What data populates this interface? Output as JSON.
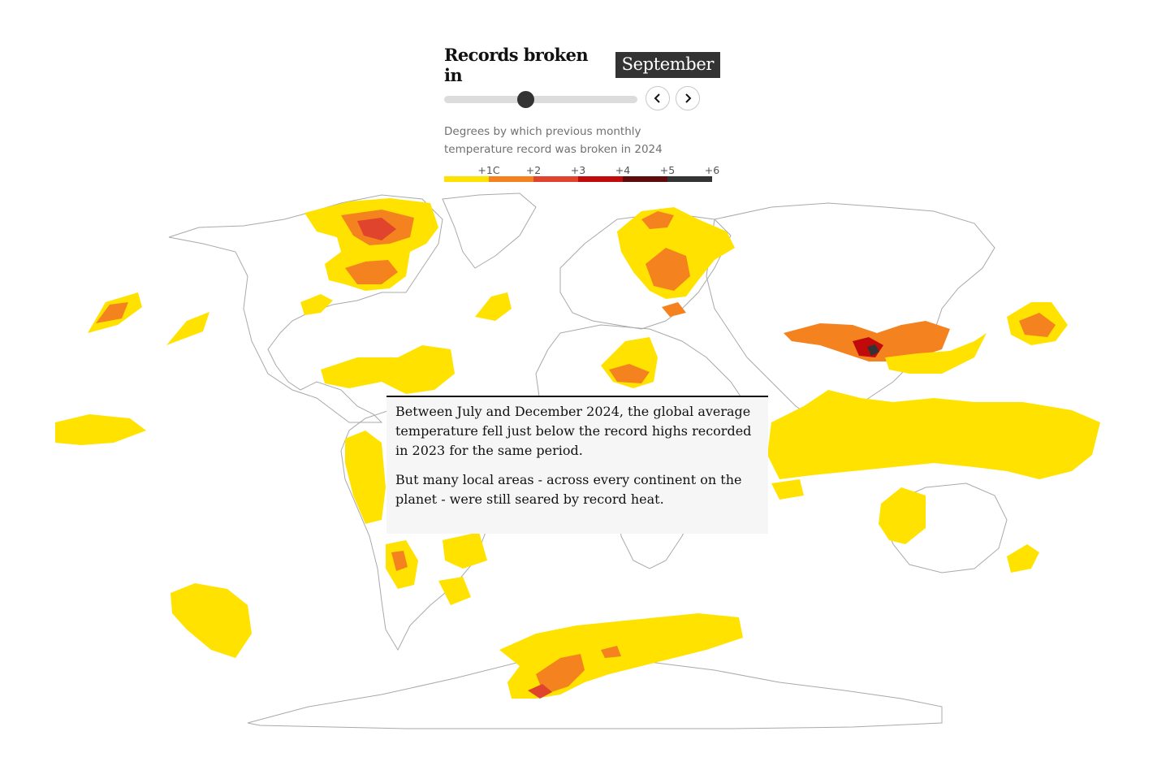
{
  "header": {
    "title_prefix": "Records broken in",
    "month": "September",
    "prev_icon": "chevron-left-icon",
    "next_icon": "chevron-right-icon",
    "slider_position": 0.42
  },
  "legend": {
    "description": "Degrees by which previous monthly temperature record was broken in 2024",
    "ticks": [
      "+1C",
      "+2",
      "+3",
      "+4",
      "+5",
      "+6"
    ],
    "colors": [
      "#ffe200",
      "#f4821f",
      "#e0442c",
      "#c10a0a",
      "#5e0b0b",
      "#333333"
    ]
  },
  "callout": {
    "paragraph1": "Between July and December 2024, the global average temperature fell just below the record highs recorded in 2023 for the same period.",
    "paragraph2": "But many local areas - across every continent on the planet - were still seared by record heat."
  }
}
